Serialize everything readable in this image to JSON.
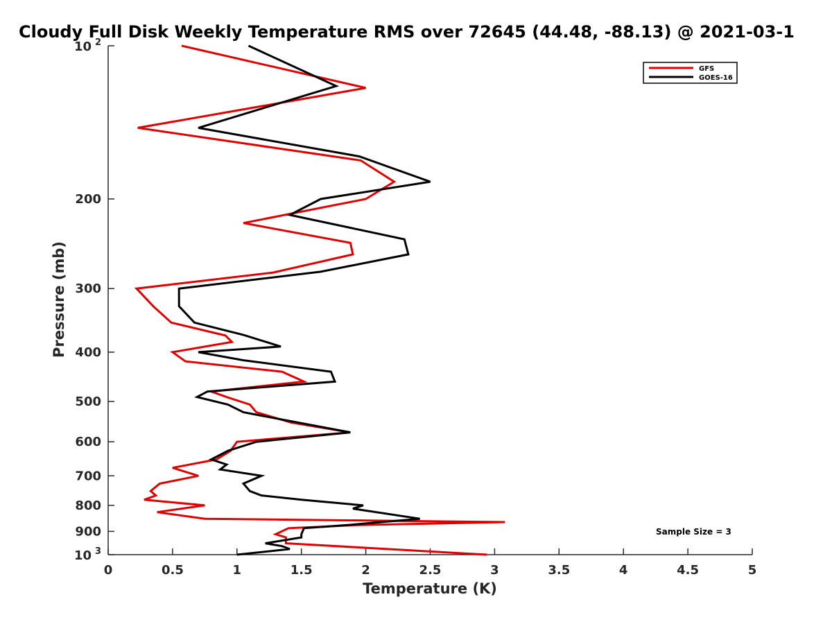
{
  "chart_data": {
    "type": "line",
    "title": "Cloudy Full Disk Weekly Temperature RMS over 72645 (44.48, -88.13) @ 2021-03-1",
    "xlabel": "Temperature (K)",
    "ylabel": "Pressure (mb)",
    "xlim": [
      0,
      5
    ],
    "ylim": [
      100,
      1000
    ],
    "y_scale": "log",
    "y_reversed": true,
    "x_ticks": [
      "0",
      "0.5",
      "1",
      "1.5",
      "2",
      "2.5",
      "3",
      "3.5",
      "4",
      "4.5",
      "5"
    ],
    "y_ticks": [
      {
        "value": 100,
        "base": "10",
        "exp": "2"
      },
      {
        "value": 200,
        "label": "200"
      },
      {
        "value": 300,
        "label": "300"
      },
      {
        "value": 400,
        "label": "400"
      },
      {
        "value": 500,
        "label": "500"
      },
      {
        "value": 600,
        "label": "600"
      },
      {
        "value": 700,
        "label": "700"
      },
      {
        "value": 800,
        "label": "800"
      },
      {
        "value": 900,
        "label": "900"
      },
      {
        "value": 1000,
        "base": "10",
        "exp": "3"
      }
    ],
    "legend_position": "top-right",
    "annotation": "Sample Size = 3",
    "series": [
      {
        "name": "GFS",
        "color": "#e00000",
        "points": [
          [
            0.57,
            100
          ],
          [
            2.0,
            121
          ],
          [
            0.23,
            145
          ],
          [
            1.96,
            168
          ],
          [
            2.22,
            185
          ],
          [
            2.0,
            200
          ],
          [
            1.05,
            223
          ],
          [
            1.88,
            244
          ],
          [
            1.9,
            257
          ],
          [
            1.28,
            279
          ],
          [
            0.22,
            300
          ],
          [
            0.35,
            325
          ],
          [
            0.49,
            350
          ],
          [
            0.91,
            371
          ],
          [
            0.96,
            382
          ],
          [
            0.5,
            400
          ],
          [
            0.6,
            417
          ],
          [
            1.35,
            437
          ],
          [
            1.52,
            457
          ],
          [
            0.8,
            478
          ],
          [
            0.93,
            491
          ],
          [
            1.1,
            507
          ],
          [
            1.15,
            525
          ],
          [
            1.42,
            550
          ],
          [
            1.88,
            575
          ],
          [
            1.0,
            600
          ],
          [
            0.95,
            625
          ],
          [
            0.84,
            650
          ],
          [
            0.5,
            675
          ],
          [
            0.7,
            700
          ],
          [
            0.4,
            725
          ],
          [
            0.33,
            750
          ],
          [
            0.37,
            765
          ],
          [
            0.28,
            780
          ],
          [
            0.75,
            800
          ],
          [
            0.38,
            825
          ],
          [
            0.75,
            850
          ],
          [
            3.08,
            863
          ],
          [
            1.92,
            875
          ],
          [
            1.4,
            887
          ],
          [
            1.3,
            912
          ],
          [
            1.38,
            925
          ],
          [
            1.38,
            950
          ],
          [
            2.94,
            1000
          ]
        ]
      },
      {
        "name": "GOES-16",
        "color": "#000000",
        "points": [
          [
            1.09,
            100
          ],
          [
            1.77,
            120
          ],
          [
            0.7,
            145
          ],
          [
            1.95,
            165
          ],
          [
            2.5,
            185
          ],
          [
            1.65,
            200
          ],
          [
            1.41,
            215
          ],
          [
            2.3,
            240
          ],
          [
            2.33,
            257
          ],
          [
            1.65,
            278
          ],
          [
            0.55,
            300
          ],
          [
            0.55,
            325
          ],
          [
            0.67,
            350
          ],
          [
            1.05,
            370
          ],
          [
            1.34,
            390
          ],
          [
            0.7,
            400
          ],
          [
            1.05,
            415
          ],
          [
            1.73,
            437
          ],
          [
            1.76,
            457
          ],
          [
            0.77,
            478
          ],
          [
            0.69,
            490
          ],
          [
            0.93,
            507
          ],
          [
            1.05,
            525
          ],
          [
            1.88,
            575
          ],
          [
            1.15,
            600
          ],
          [
            0.93,
            625
          ],
          [
            0.8,
            650
          ],
          [
            0.92,
            665
          ],
          [
            0.87,
            680
          ],
          [
            1.19,
            700
          ],
          [
            1.05,
            725
          ],
          [
            1.1,
            750
          ],
          [
            1.19,
            765
          ],
          [
            1.5,
            780
          ],
          [
            1.98,
            800
          ],
          [
            1.9,
            812
          ],
          [
            2.42,
            850
          ],
          [
            1.85,
            875
          ],
          [
            1.52,
            887
          ],
          [
            1.5,
            912
          ],
          [
            1.5,
            925
          ],
          [
            1.22,
            950
          ],
          [
            1.35,
            962
          ],
          [
            1.41,
            975
          ],
          [
            1.0,
            1000
          ]
        ]
      }
    ]
  }
}
